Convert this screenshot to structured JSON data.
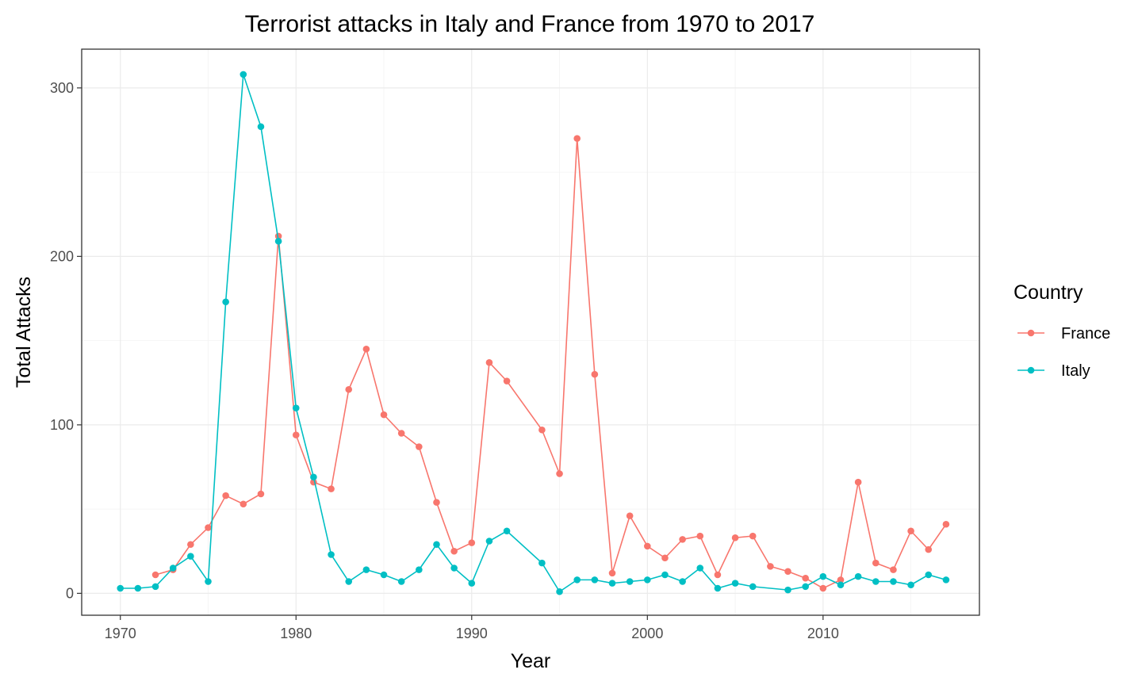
{
  "chart_data": {
    "type": "line",
    "title": "Terrorist attacks in Italy and France from 1970 to 2017",
    "xlabel": "Year",
    "ylabel": "Total Attacks",
    "xlim": [
      1967.8,
      2018.9
    ],
    "ylim": [
      -13,
      323
    ],
    "x_ticks": [
      1970,
      1980,
      1990,
      2000,
      2010
    ],
    "y_ticks": [
      0,
      100,
      200,
      300
    ],
    "grid": true,
    "legend": {
      "title": "Country",
      "position": "right"
    },
    "series": [
      {
        "name": "France",
        "color": "#F8766D",
        "x": [
          1972,
          1973,
          1974,
          1975,
          1976,
          1977,
          1978,
          1979,
          1980,
          1981,
          1982,
          1983,
          1984,
          1985,
          1986,
          1987,
          1988,
          1989,
          1990,
          1991,
          1992,
          1994,
          1995,
          1996,
          1997,
          1998,
          1999,
          2000,
          2001,
          2002,
          2003,
          2004,
          2005,
          2006,
          2007,
          2008,
          2009,
          2010,
          2011,
          2012,
          2013,
          2014,
          2015,
          2016,
          2017
        ],
        "y": [
          11,
          14,
          29,
          39,
          58,
          53,
          59,
          212,
          94,
          66,
          62,
          121,
          145,
          106,
          95,
          87,
          54,
          25,
          30,
          137,
          126,
          97,
          71,
          270,
          130,
          12,
          46,
          28,
          21,
          32,
          34,
          11,
          33,
          34,
          16,
          13,
          9,
          3,
          8,
          66,
          18,
          14,
          37,
          26,
          41
        ]
      },
      {
        "name": "Italy",
        "color": "#00BFC4",
        "x": [
          1970,
          1971,
          1972,
          1973,
          1974,
          1975,
          1976,
          1977,
          1978,
          1979,
          1980,
          1981,
          1982,
          1983,
          1984,
          1985,
          1986,
          1987,
          1988,
          1989,
          1990,
          1991,
          1992,
          1994,
          1995,
          1996,
          1997,
          1998,
          1999,
          2000,
          2001,
          2002,
          2003,
          2004,
          2005,
          2006,
          2008,
          2009,
          2010,
          2011,
          2012,
          2013,
          2014,
          2015,
          2016,
          2017
        ],
        "y": [
          3,
          3,
          4,
          15,
          22,
          7,
          173,
          308,
          277,
          209,
          110,
          69,
          23,
          7,
          14,
          11,
          7,
          14,
          29,
          15,
          6,
          31,
          37,
          18,
          1,
          8,
          8,
          6,
          7,
          8,
          11,
          7,
          15,
          3,
          6,
          4,
          2,
          4,
          10,
          5,
          10,
          7,
          7,
          5,
          11,
          8
        ]
      }
    ]
  }
}
